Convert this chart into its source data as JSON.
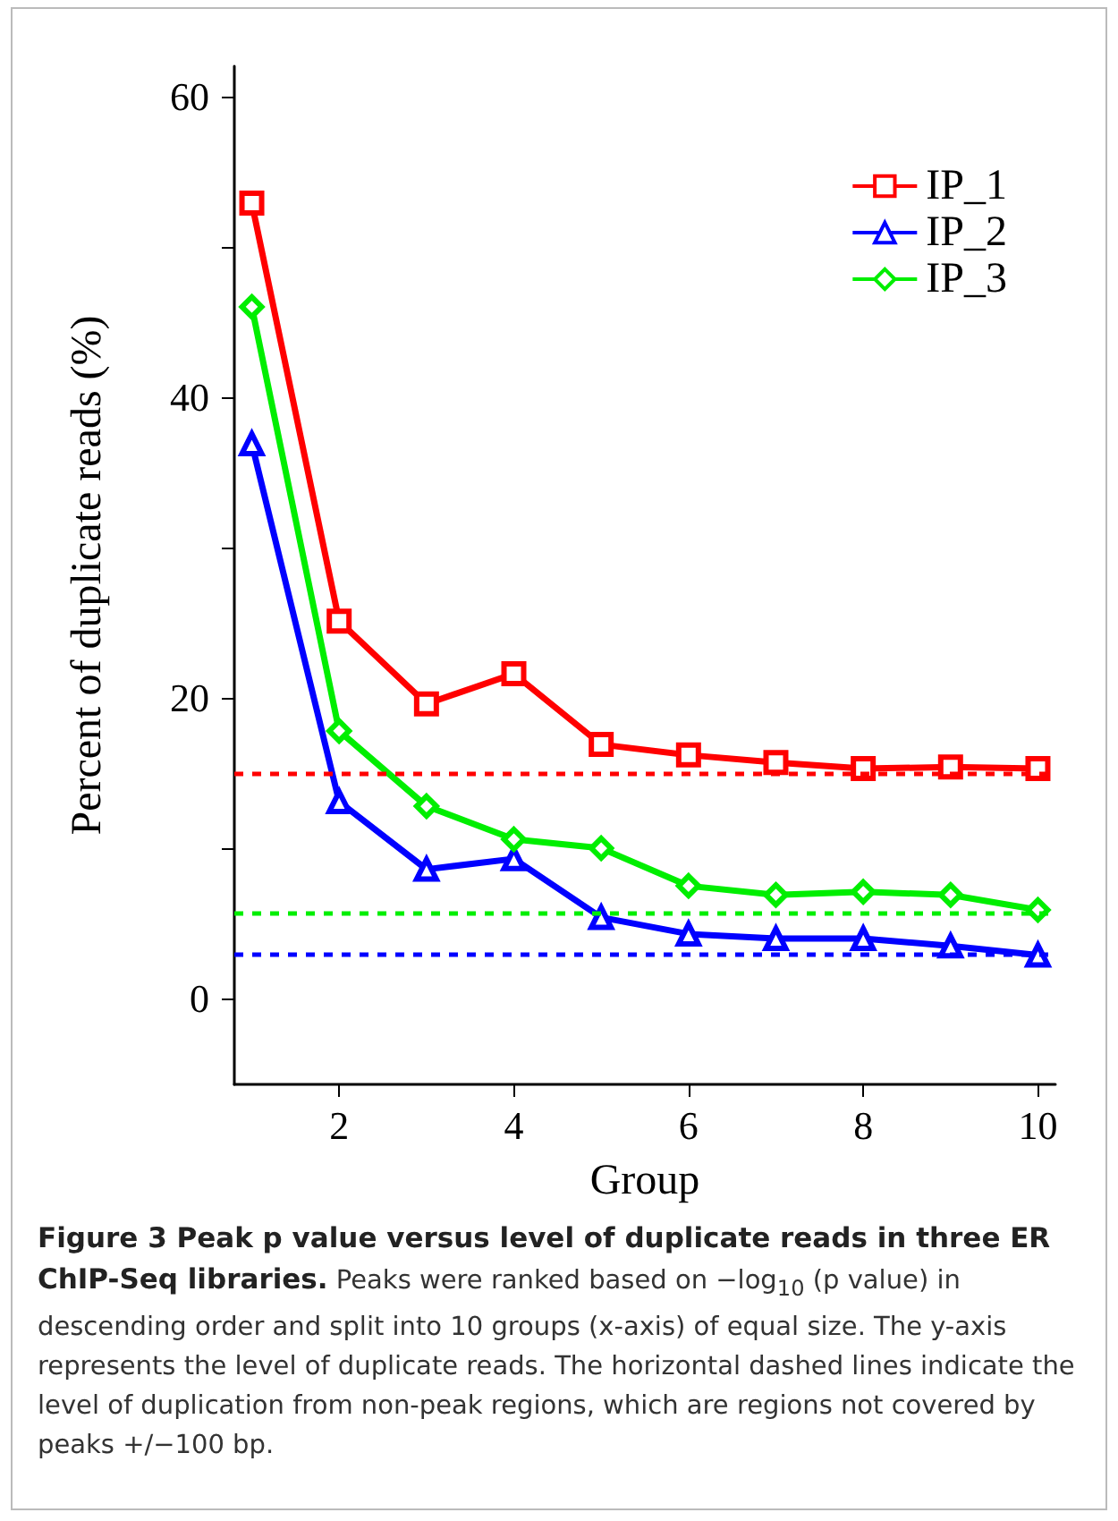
{
  "chart_data": {
    "type": "line",
    "xlabel": "Group",
    "ylabel": "Percent of duplicate reads (%)",
    "title": "Figure 3 Peak p value versus level of duplicate reads in three ER ChIP-Seq libraries.",
    "annotations": [
      "Peaks were ranked based on −log$_{10}$ (p value) in descending order and split into 10 groups (x-axis) of equal size. The y-axis represents the level of duplicate reads. The horizontal dashed lines indicate the level of duplication from non-peak regions, which are regions not covered by peaks +/−100 bp."
    ],
    "x": [
      1,
      2,
      3,
      4,
      5,
      6,
      7,
      8,
      9,
      10
    ],
    "series": [
      {
        "name": "IP_1",
        "color": "#ff0000",
        "marker": "square",
        "values": [
          52.9,
          25.1,
          19.6,
          21.6,
          16.9,
          16.2,
          15.7,
          15.3,
          15.4,
          15.3
        ]
      },
      {
        "name": "IP_2",
        "color": "#0000ff",
        "marker": "triangle",
        "values": [
          36.9,
          13.1,
          8.6,
          9.3,
          5.4,
          4.3,
          4.0,
          4.0,
          3.5,
          2.9
        ]
      },
      {
        "name": "IP_3",
        "color": "#00ee00",
        "marker": "diamond",
        "values": [
          46.0,
          17.8,
          12.8,
          10.6,
          10.0,
          7.5,
          6.9,
          7.1,
          6.9,
          5.9
        ]
      }
    ],
    "ref_lines": [
      {
        "axis": "y",
        "value": 15.0,
        "color": "#ff0000",
        "line_style": "dashed"
      },
      {
        "axis": "y",
        "value": 2.9,
        "color": "#0000ff",
        "line_style": "dashed"
      },
      {
        "axis": "y",
        "value": 5.7,
        "color": "#00ee00",
        "line_style": "dashed"
      }
    ],
    "xlim": [
      0.8,
      10.2
    ],
    "xticks": [
      2,
      4,
      6,
      8,
      10
    ],
    "ylim": [
      -5.7,
      62
    ],
    "yticks": [
      0,
      {
        "value": 10,
        "label": null
      },
      20,
      {
        "value": 30,
        "label": null
      },
      40,
      {
        "value": 50,
        "label": null
      },
      60
    ],
    "grid": false,
    "legend": "top right",
    "line_style": "solid"
  }
}
